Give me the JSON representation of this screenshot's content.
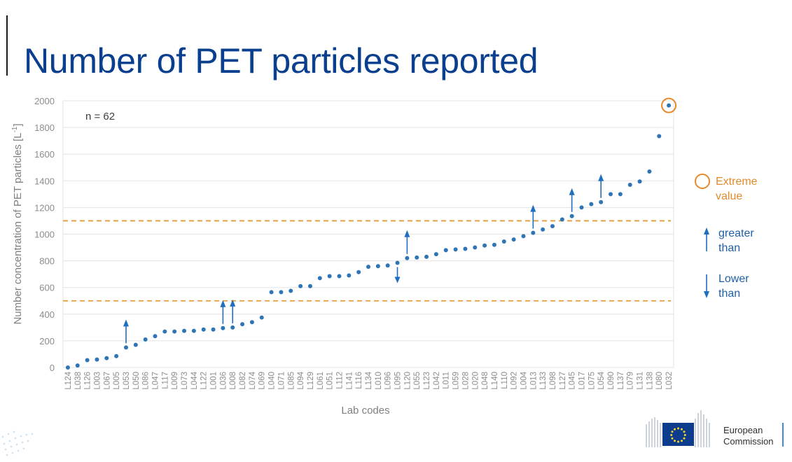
{
  "slide": {
    "title": "Number of PET particles reported"
  },
  "colors": {
    "title": "#0a3f8f",
    "point": "#2e75b6",
    "arrow": "#1f6fc0",
    "threshold": "#e59a3a",
    "extreme": "#e58a2b",
    "grid": "#e3e3e3",
    "axis_text": "#8c8c8c"
  },
  "legend": {
    "extreme_label": "Extreme\nvalue",
    "greater_label": "greater\nthan",
    "lower_label": "Lower\nthan"
  },
  "logo": {
    "text": "European\nCommission"
  },
  "chart_data": {
    "type": "scatter",
    "annotation": "n = 62",
    "xlabel": "Lab codes",
    "ylabel": "Number concentration of PET particles [L",
    "ylabel_superscript": "-1",
    "ylabel_suffix": "]",
    "ylim": [
      0,
      2000
    ],
    "yticks": [
      0,
      200,
      400,
      600,
      800,
      1000,
      1200,
      1400,
      1600,
      1800,
      2000
    ],
    "grid": true,
    "thresholds": [
      500,
      1100
    ],
    "categories": [
      "L124",
      "L038",
      "L126",
      "L003",
      "L067",
      "L005",
      "L053",
      "L050",
      "L086",
      "L047",
      "L117",
      "L009",
      "L073",
      "L044",
      "L122",
      "L001",
      "L036",
      "L008",
      "L082",
      "L074",
      "L069",
      "L040",
      "L071",
      "L085",
      "L094",
      "L129",
      "L061",
      "L051",
      "L112",
      "L141",
      "L116",
      "L134",
      "L010",
      "L096",
      "L095",
      "L120",
      "L055",
      "L123",
      "L042",
      "L011",
      "L059",
      "L028",
      "L020",
      "L048",
      "L140",
      "L110",
      "L092",
      "L004",
      "L013",
      "L133",
      "L098",
      "L127",
      "L045",
      "L017",
      "L075",
      "L054",
      "L090",
      "L137",
      "L079",
      "L131",
      "L138",
      "L080",
      "L032"
    ],
    "values": [
      0,
      15,
      55,
      60,
      70,
      85,
      150,
      170,
      210,
      235,
      270,
      270,
      275,
      275,
      285,
      285,
      295,
      300,
      325,
      340,
      375,
      565,
      565,
      575,
      610,
      610,
      670,
      685,
      685,
      690,
      715,
      755,
      760,
      765,
      785,
      820,
      825,
      830,
      850,
      880,
      885,
      890,
      900,
      915,
      920,
      945,
      960,
      985,
      1010,
      1035,
      1060,
      1110,
      1135,
      1200,
      1225,
      1240,
      1300,
      1300,
      1370,
      1395,
      1470,
      1735,
      1965
    ],
    "greater_than": [
      "L053",
      "L036",
      "L008",
      "L120",
      "L013",
      "L045",
      "L054"
    ],
    "lower_than": [
      "L095"
    ],
    "extreme_values": [
      "L032"
    ]
  }
}
